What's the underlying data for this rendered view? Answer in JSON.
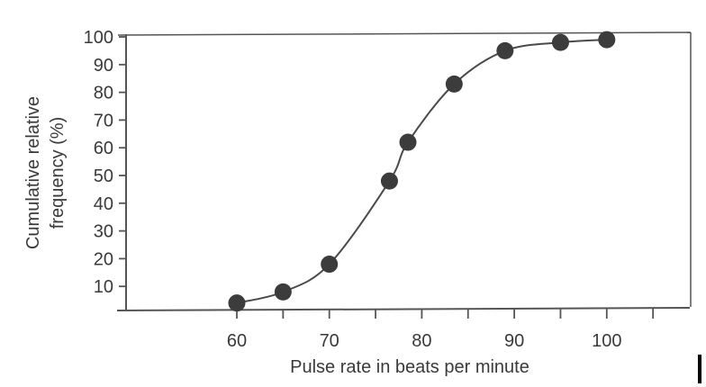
{
  "chart_data": {
    "type": "line",
    "title": "",
    "xlabel": "Pulse rate in beats per minute",
    "ylabel_lines": [
      "Cumulative relative",
      "frequency (%)"
    ],
    "ylabel": "Cumulative relative frequency (%)",
    "x_ticks": [
      60,
      70,
      80,
      90,
      100
    ],
    "x_minor_ticks": [
      60,
      65,
      70,
      75,
      80,
      85,
      90,
      95,
      100,
      105
    ],
    "y_ticks": [
      10,
      20,
      30,
      40,
      50,
      60,
      70,
      80,
      90,
      100
    ],
    "xlim": [
      50,
      108
    ],
    "ylim": [
      0,
      100
    ],
    "grid": false,
    "legend": null,
    "markers": "filled circles",
    "curve": "smooth S-shaped (ogive)",
    "series": [
      {
        "name": "Cumulative relative frequency",
        "x": [
          60,
          65,
          70,
          76.5,
          78.5,
          83.5,
          89,
          95,
          100
        ],
        "y": [
          4,
          8,
          18,
          48,
          62,
          83,
          95,
          98,
          99
        ]
      }
    ],
    "colors": {
      "line": "#4a4a4a",
      "marker": "#3c3c3c",
      "axis": "#555555",
      "text": "#3a3a3a"
    }
  }
}
